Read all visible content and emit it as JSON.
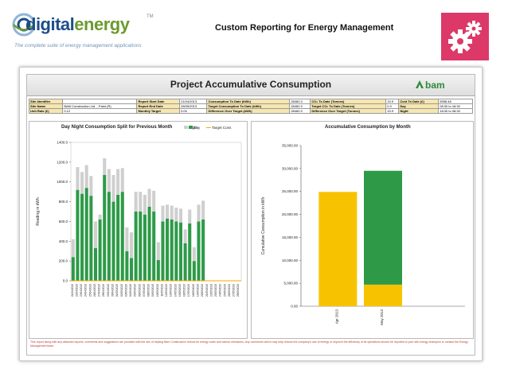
{
  "header": {
    "logo_primary": "digital",
    "logo_secondary": "energy",
    "logo_tm": "TM",
    "tagline": "The complete suite of energy management applications",
    "title": "Custom Reporting for Energy Management",
    "tile_icon": "gears-icon",
    "tile_color": "#dc3868"
  },
  "report": {
    "title": "Project Accumulative Consumption",
    "brand": "bam",
    "info_rows": [
      [
        "Site Identifier",
        "",
        "Report Start Date",
        "21/04/2013",
        "Consumption To Date (kWh)",
        "28460.3",
        "CO₂ To Date (Tonnes)",
        "15.9",
        "Cost To Date (£)",
        "5558.48"
      ],
      [
        "Site Name",
        "BAM Construction Ltd. - Paint (R)",
        "Report End Date",
        "28/05/2013",
        "Target Consumption To Date (kWh)",
        "28460.3",
        "Target CO₂ To Date (Tonnes)",
        "0.0",
        "Day",
        "08:30 to 18:30"
      ],
      [
        "Unit Rate (£)",
        "0.12",
        "Monthly Target",
        "0.00",
        "Difference Over Target (kWh)",
        "28460.3",
        "Difference Over Target (Tonnes)",
        "15.9",
        "Night",
        "18:30 to 08:30"
      ]
    ],
    "footer_text": "This report along with any attached reports, comments and suggestions are provided with the aim of helping Bam Construction reduce its energy costs and carbon emissions. Any comments which may help reduce the company's use of energy or improve the efficiency of its operations should be reported to your site energy champion or contact the Energy Management team."
  },
  "colors": {
    "day": "#2e9a48",
    "night": "#cfcfcf",
    "target": "#f5a500",
    "apr": "#f7c300",
    "may_green": "#2e9a48",
    "may_yellow": "#f7c300"
  },
  "chart_data": [
    {
      "type": "bar",
      "title": "Day Night Consumption Split for Previous Month",
      "ylabel": "Reading in kWh",
      "ylim": [
        0,
        1400
      ],
      "yticks": [
        "0.0",
        "200.0",
        "400.0",
        "600.0",
        "800.0",
        "1000.0",
        "1200.0",
        "1400.0"
      ],
      "legend": [
        "Night",
        "Day",
        "Target Cons"
      ],
      "categories": [
        "21/04/2013",
        "22/04/2013",
        "23/04/2013",
        "24/04/2013",
        "25/04/2013",
        "26/04/2013",
        "27/04/2013",
        "28/04/2013",
        "29/04/2013",
        "30/04/2013",
        "01/05/2013",
        "02/05/2013",
        "03/05/2013",
        "04/05/2013",
        "05/05/2013",
        "06/05/2013",
        "07/05/2013",
        "08/05/2013",
        "09/05/2013",
        "10/05/2013",
        "11/05/2013",
        "12/05/2013",
        "13/05/2013",
        "14/05/2013",
        "15/05/2013",
        "16/05/2013",
        "17/05/2013",
        "18/05/2013",
        "19/05/2013",
        "20/05/2013",
        "21/05/2013",
        "22/05/2013",
        "23/05/2013",
        "24/05/2013",
        "25/05/2013",
        "26/05/2013",
        "27/05/2013",
        "28/05/2013"
      ],
      "series": [
        {
          "name": "Day",
          "values": [
            240,
            920,
            880,
            940,
            860,
            330,
            620,
            1070,
            900,
            800,
            870,
            900,
            300,
            230,
            700,
            700,
            670,
            750,
            700,
            210,
            600,
            630,
            620,
            600,
            590,
            380,
            580,
            200,
            600,
            620,
            0,
            0,
            0,
            0,
            0,
            0,
            0,
            0
          ]
        },
        {
          "name": "Night",
          "values": [
            180,
            230,
            220,
            230,
            200,
            270,
            50,
            170,
            230,
            270,
            260,
            240,
            240,
            260,
            200,
            200,
            200,
            180,
            210,
            180,
            160,
            140,
            140,
            140,
            140,
            140,
            140,
            140,
            170,
            190,
            0,
            0,
            0,
            0,
            0,
            0,
            0,
            0
          ]
        }
      ]
    },
    {
      "type": "bar",
      "title": "Accumulative Consumption by Month",
      "ylabel": "Cumulative Consumption in kWh",
      "ylim": [
        0,
        35000
      ],
      "yticks": [
        "0.00",
        "5,000.00",
        "10,000.00",
        "15,000.00",
        "20,000.00",
        "25,000.00",
        "30,000.00",
        "35,000.00"
      ],
      "categories": [
        "Apr 2013",
        "May 2013"
      ],
      "series": [
        {
          "name": "Base",
          "values": [
            24900,
            4700
          ]
        },
        {
          "name": "Added",
          "values": [
            0,
            24800
          ]
        }
      ]
    }
  ]
}
